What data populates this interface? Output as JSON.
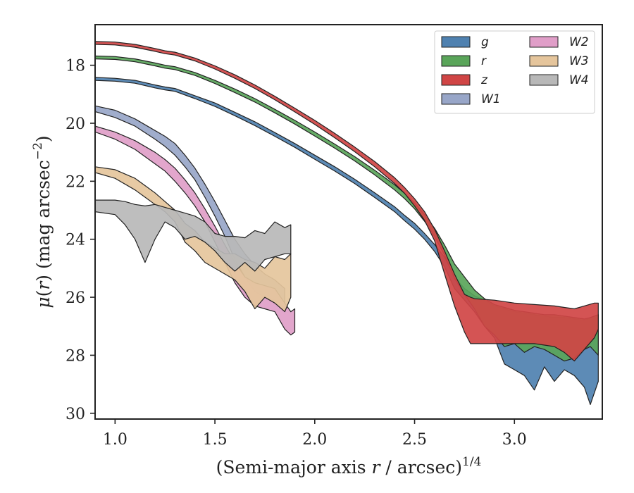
{
  "chart_data": {
    "type": "area",
    "xlabel": "(Semi-major axis r / arcsec)^1/4",
    "xlabel_parts": {
      "prefix": "(Semi-major axis ",
      "var": "r",
      "suffix": " / arcsec)",
      "exp": "1/4"
    },
    "ylabel": "μ(r) (mag arcsec^−2)",
    "ylabel_parts": {
      "mu": "μ",
      "open": "(",
      "var": "r",
      "close": ")",
      "unit": " (mag arcsec",
      "exp": "−2",
      "end": ")"
    },
    "xlim": [
      0.9,
      3.44
    ],
    "ylim": [
      30.2,
      16.6
    ],
    "y_inverted": true,
    "xticks": [
      1.0,
      1.5,
      2.0,
      2.5,
      3.0
    ],
    "xtick_labels": [
      "1.0",
      "1.5",
      "2.0",
      "2.5",
      "3.0"
    ],
    "yticks": [
      18,
      20,
      22,
      24,
      26,
      28,
      30
    ],
    "ytick_labels": [
      "18",
      "20",
      "22",
      "24",
      "26",
      "28",
      "30"
    ],
    "legend": {
      "placement": "top-right",
      "columns": 2
    },
    "series": [
      {
        "name": "g",
        "color": "#4f81b0",
        "band": [
          [
            0.9,
            18.42,
            18.52
          ],
          [
            1.0,
            18.45,
            18.55
          ],
          [
            1.1,
            18.52,
            18.62
          ],
          [
            1.2,
            18.68,
            18.78
          ],
          [
            1.25,
            18.75,
            18.85
          ],
          [
            1.3,
            18.8,
            18.9
          ],
          [
            1.4,
            19.05,
            19.15
          ],
          [
            1.5,
            19.3,
            19.42
          ],
          [
            1.6,
            19.62,
            19.74
          ],
          [
            1.7,
            19.95,
            20.08
          ],
          [
            1.8,
            20.32,
            20.45
          ],
          [
            1.9,
            20.7,
            20.83
          ],
          [
            2.0,
            21.1,
            21.24
          ],
          [
            2.1,
            21.5,
            21.65
          ],
          [
            2.2,
            21.93,
            22.08
          ],
          [
            2.3,
            22.4,
            22.56
          ],
          [
            2.4,
            22.88,
            23.05
          ],
          [
            2.45,
            23.18,
            23.36
          ],
          [
            2.5,
            23.45,
            23.65
          ],
          [
            2.55,
            23.8,
            24.0
          ],
          [
            2.6,
            24.18,
            24.42
          ],
          [
            2.65,
            24.62,
            24.95
          ],
          [
            2.7,
            25.3,
            25.7
          ],
          [
            2.75,
            25.7,
            26.1
          ],
          [
            2.8,
            25.95,
            26.5
          ],
          [
            2.85,
            26.1,
            27.0
          ],
          [
            2.9,
            26.3,
            27.4
          ],
          [
            2.95,
            26.4,
            28.3
          ],
          [
            3.0,
            26.5,
            28.5
          ],
          [
            3.05,
            26.55,
            28.7
          ],
          [
            3.1,
            26.6,
            29.2
          ],
          [
            3.15,
            26.65,
            28.4
          ],
          [
            3.2,
            26.7,
            28.9
          ],
          [
            3.25,
            26.7,
            28.5
          ],
          [
            3.3,
            26.75,
            28.7
          ],
          [
            3.35,
            26.8,
            29.1
          ],
          [
            3.38,
            26.7,
            29.7
          ],
          [
            3.42,
            26.6,
            28.9
          ]
        ]
      },
      {
        "name": "r",
        "color": "#5aa55a",
        "band": [
          [
            0.9,
            17.68,
            17.78
          ],
          [
            1.0,
            17.7,
            17.8
          ],
          [
            1.1,
            17.78,
            17.88
          ],
          [
            1.2,
            17.92,
            18.02
          ],
          [
            1.25,
            18.0,
            18.1
          ],
          [
            1.3,
            18.05,
            18.15
          ],
          [
            1.4,
            18.25,
            18.35
          ],
          [
            1.5,
            18.52,
            18.63
          ],
          [
            1.6,
            18.82,
            18.94
          ],
          [
            1.7,
            19.15,
            19.27
          ],
          [
            1.8,
            19.52,
            19.64
          ],
          [
            1.9,
            19.9,
            20.03
          ],
          [
            2.0,
            20.3,
            20.44
          ],
          [
            2.1,
            20.72,
            20.86
          ],
          [
            2.2,
            21.15,
            21.3
          ],
          [
            2.3,
            21.62,
            21.78
          ],
          [
            2.4,
            22.12,
            22.3
          ],
          [
            2.45,
            22.42,
            22.6
          ],
          [
            2.5,
            22.75,
            22.95
          ],
          [
            2.55,
            23.15,
            23.38
          ],
          [
            2.6,
            23.62,
            23.9
          ],
          [
            2.65,
            24.2,
            24.55
          ],
          [
            2.7,
            24.85,
            25.35
          ],
          [
            2.75,
            25.3,
            25.9
          ],
          [
            2.8,
            25.75,
            26.4
          ],
          [
            2.85,
            26.05,
            27.0
          ],
          [
            2.9,
            26.25,
            27.3
          ],
          [
            2.95,
            26.35,
            27.7
          ],
          [
            3.0,
            26.45,
            27.6
          ],
          [
            3.05,
            26.5,
            27.9
          ],
          [
            3.1,
            26.55,
            27.7
          ],
          [
            3.15,
            26.6,
            27.8
          ],
          [
            3.2,
            26.6,
            28.0
          ],
          [
            3.25,
            26.65,
            28.2
          ],
          [
            3.3,
            26.7,
            28.1
          ],
          [
            3.35,
            26.75,
            27.8
          ],
          [
            3.38,
            26.7,
            27.7
          ],
          [
            3.42,
            26.6,
            28.0
          ]
        ]
      },
      {
        "name": "z",
        "color": "#d04545",
        "band": [
          [
            0.9,
            17.18,
            17.28
          ],
          [
            1.0,
            17.2,
            17.3
          ],
          [
            1.1,
            17.28,
            17.38
          ],
          [
            1.2,
            17.42,
            17.52
          ],
          [
            1.25,
            17.5,
            17.6
          ],
          [
            1.3,
            17.55,
            17.65
          ],
          [
            1.4,
            17.75,
            17.85
          ],
          [
            1.5,
            18.02,
            18.13
          ],
          [
            1.6,
            18.33,
            18.45
          ],
          [
            1.7,
            18.68,
            18.8
          ],
          [
            1.8,
            19.07,
            19.19
          ],
          [
            1.9,
            19.48,
            19.61
          ],
          [
            2.0,
            19.9,
            20.04
          ],
          [
            2.1,
            20.35,
            20.5
          ],
          [
            2.2,
            20.82,
            20.98
          ],
          [
            2.3,
            21.32,
            21.5
          ],
          [
            2.4,
            21.88,
            22.08
          ],
          [
            2.45,
            22.22,
            22.42
          ],
          [
            2.5,
            22.6,
            22.85
          ],
          [
            2.55,
            23.05,
            23.35
          ],
          [
            2.6,
            23.65,
            24.05
          ],
          [
            2.65,
            24.4,
            25.2
          ],
          [
            2.7,
            25.2,
            26.3
          ],
          [
            2.75,
            25.9,
            27.2
          ],
          [
            2.78,
            26.0,
            27.6
          ],
          [
            2.8,
            26.05,
            27.6
          ],
          [
            2.9,
            26.1,
            27.6
          ],
          [
            3.0,
            26.2,
            27.6
          ],
          [
            3.1,
            26.25,
            27.6
          ],
          [
            3.2,
            26.3,
            27.7
          ],
          [
            3.25,
            26.35,
            27.9
          ],
          [
            3.3,
            26.4,
            28.2
          ],
          [
            3.35,
            26.3,
            27.8
          ],
          [
            3.4,
            26.2,
            27.4
          ],
          [
            3.42,
            26.2,
            27.1
          ]
        ]
      },
      {
        "name": "W1",
        "color": "#98a6c8",
        "band": [
          [
            0.9,
            19.4,
            19.6
          ],
          [
            1.0,
            19.55,
            19.8
          ],
          [
            1.1,
            19.85,
            20.1
          ],
          [
            1.2,
            20.25,
            20.55
          ],
          [
            1.25,
            20.45,
            20.8
          ],
          [
            1.3,
            20.7,
            21.1
          ],
          [
            1.35,
            21.1,
            21.5
          ],
          [
            1.4,
            21.55,
            21.95
          ],
          [
            1.45,
            22.1,
            22.55
          ],
          [
            1.5,
            22.7,
            23.2
          ],
          [
            1.55,
            23.35,
            23.9
          ],
          [
            1.6,
            24.0,
            24.7
          ],
          [
            1.65,
            24.5,
            25.3
          ],
          [
            1.7,
            24.9,
            25.8
          ],
          [
            1.75,
            25.2,
            26.0
          ],
          [
            1.8,
            25.4,
            26.1
          ],
          [
            1.85,
            25.7,
            26.4
          ]
        ]
      },
      {
        "name": "W2",
        "color": "#e09ec8",
        "band": [
          [
            0.9,
            20.1,
            20.3
          ],
          [
            1.0,
            20.3,
            20.55
          ],
          [
            1.1,
            20.6,
            20.9
          ],
          [
            1.2,
            21.0,
            21.4
          ],
          [
            1.25,
            21.25,
            21.65
          ],
          [
            1.3,
            21.55,
            22.0
          ],
          [
            1.35,
            21.95,
            22.4
          ],
          [
            1.4,
            22.4,
            22.85
          ],
          [
            1.45,
            22.95,
            23.4
          ],
          [
            1.5,
            23.55,
            24.1
          ],
          [
            1.55,
            24.2,
            24.8
          ],
          [
            1.6,
            24.8,
            25.5
          ],
          [
            1.65,
            25.3,
            26.0
          ],
          [
            1.7,
            25.5,
            26.3
          ],
          [
            1.75,
            25.6,
            26.4
          ],
          [
            1.8,
            25.7,
            26.5
          ],
          [
            1.85,
            26.2,
            27.1
          ],
          [
            1.88,
            26.5,
            27.3
          ],
          [
            1.9,
            26.4,
            27.2
          ]
        ]
      },
      {
        "name": "W3",
        "color": "#e5c59c",
        "band": [
          [
            0.9,
            21.5,
            21.7
          ],
          [
            1.0,
            21.6,
            21.9
          ],
          [
            1.1,
            21.9,
            22.3
          ],
          [
            1.15,
            22.15,
            22.55
          ],
          [
            1.2,
            22.4,
            22.8
          ],
          [
            1.25,
            22.7,
            23.05
          ],
          [
            1.3,
            23.0,
            23.4
          ],
          [
            1.35,
            23.45,
            24.1
          ],
          [
            1.4,
            23.7,
            24.4
          ],
          [
            1.45,
            24.1,
            24.8
          ],
          [
            1.5,
            24.3,
            25.0
          ],
          [
            1.55,
            24.5,
            25.2
          ],
          [
            1.6,
            24.5,
            25.4
          ],
          [
            1.65,
            24.7,
            25.8
          ],
          [
            1.7,
            24.8,
            26.4
          ],
          [
            1.75,
            25.0,
            26.0
          ],
          [
            1.8,
            24.6,
            26.2
          ],
          [
            1.85,
            24.7,
            26.5
          ],
          [
            1.88,
            24.5,
            26.0
          ]
        ]
      },
      {
        "name": "W4",
        "color": "#b8b8b8",
        "band": [
          [
            0.9,
            22.65,
            23.05
          ],
          [
            1.0,
            22.65,
            23.15
          ],
          [
            1.05,
            22.7,
            23.5
          ],
          [
            1.1,
            22.8,
            24.0
          ],
          [
            1.15,
            22.85,
            24.8
          ],
          [
            1.2,
            22.8,
            24.0
          ],
          [
            1.25,
            22.9,
            23.4
          ],
          [
            1.3,
            23.0,
            23.6
          ],
          [
            1.35,
            23.1,
            24.0
          ],
          [
            1.4,
            23.2,
            23.9
          ],
          [
            1.45,
            23.4,
            24.1
          ],
          [
            1.5,
            23.8,
            24.4
          ],
          [
            1.55,
            23.9,
            24.8
          ],
          [
            1.6,
            23.9,
            25.1
          ],
          [
            1.65,
            23.95,
            24.8
          ],
          [
            1.7,
            23.7,
            25.1
          ],
          [
            1.75,
            23.8,
            24.7
          ],
          [
            1.8,
            23.4,
            24.6
          ],
          [
            1.85,
            23.6,
            24.5
          ],
          [
            1.88,
            23.5,
            24.5
          ]
        ]
      }
    ]
  }
}
